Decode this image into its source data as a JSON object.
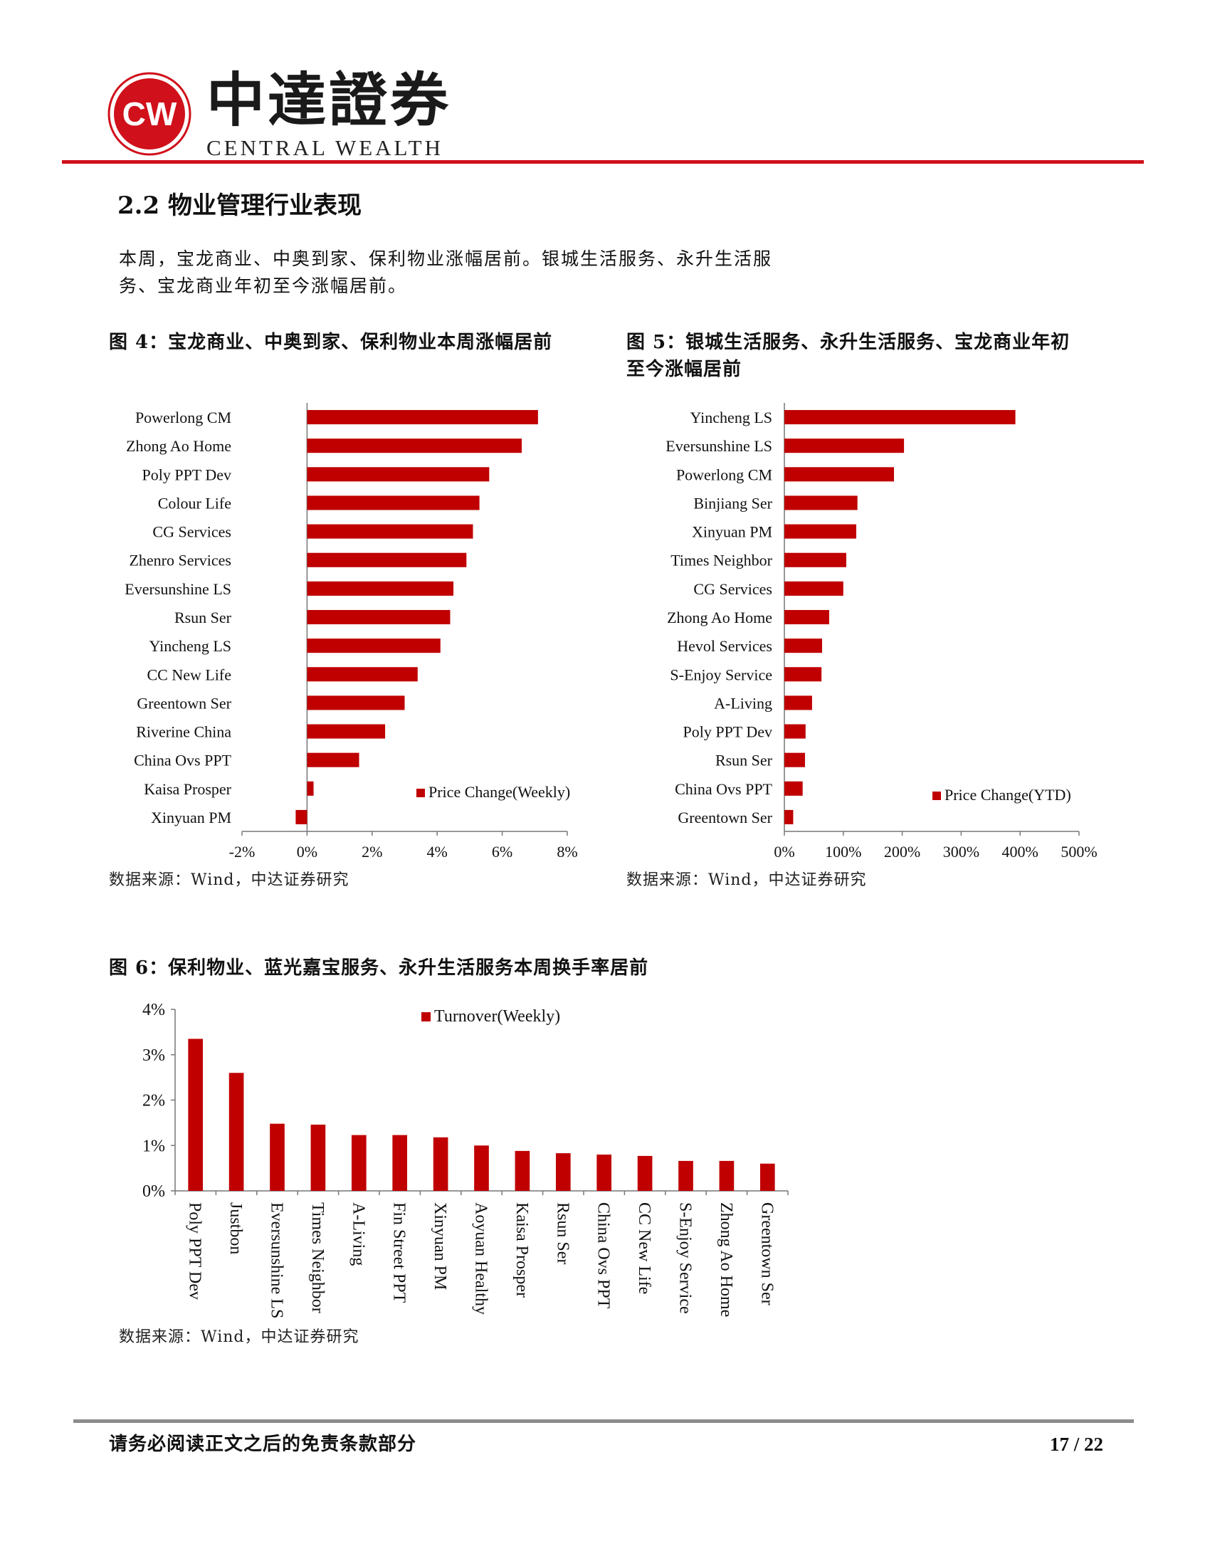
{
  "header": {
    "logo_text": "CW",
    "brand_cn": "中達證券",
    "brand_en": "CENTRAL WEALTH",
    "accent_color": "#d0101a"
  },
  "section": {
    "title": "2.2 物业管理行业表现",
    "intro_line1": "本周，宝龙商业、中奥到家、保利物业涨幅居前。银城生活服务、永升生活服",
    "intro_line2": "务、宝龙商业年初至今涨幅居前。"
  },
  "fig4": {
    "title": "图 4：宝龙商业、中奥到家、保利物业本周涨幅居前",
    "source": "数据来源：Wind，中达证券研究"
  },
  "fig5": {
    "title_line1": "图 5：银城生活服务、永升生活服务、宝龙商业年初",
    "title_line2": "至今涨幅居前",
    "source": "数据来源：Wind，中达证券研究"
  },
  "fig6": {
    "title": "图 6：保利物业、蓝光嘉宝服务、永升生活服务本周换手率居前",
    "source": "数据来源：Wind，中达证券研究"
  },
  "chart_data": [
    {
      "type": "bar",
      "orientation": "horizontal",
      "categories": [
        "Powerlong CM",
        "Zhong Ao Home",
        "Poly PPT Dev",
        "Colour Life",
        "CG Services",
        "Zhenro Services",
        "Eversunshine LS",
        "Rsun Ser",
        "Yincheng LS",
        "CC New Life",
        "Greentown Ser",
        "Riverine China",
        "China Ovs PPT",
        "Kaisa Prosper",
        "Xinyuan PM"
      ],
      "series": [
        {
          "name": "Price Change(Weekly)",
          "values": [
            7.1,
            6.6,
            5.6,
            5.3,
            5.1,
            4.9,
            4.5,
            4.4,
            4.1,
            3.4,
            3.0,
            2.4,
            1.6,
            0.2,
            -0.35
          ]
        }
      ],
      "xlim": [
        -2,
        8
      ],
      "xticks": [
        "-2%",
        "0%",
        "2%",
        "4%",
        "6%",
        "8%"
      ],
      "legend": "bottom-right",
      "color": "#c00000"
    },
    {
      "type": "bar",
      "orientation": "horizontal",
      "categories": [
        "Yincheng LS",
        "Eversunshine LS",
        "Powerlong CM",
        "Binjiang Ser",
        "Xinyuan PM",
        "Times Neighbor",
        "CG Services",
        "Zhong Ao Home",
        "Hevol Services",
        "S-Enjoy Service",
        "A-Living",
        "Poly PPT Dev",
        "Rsun Ser",
        "China Ovs PPT",
        "Greentown Ser"
      ],
      "series": [
        {
          "name": "Price Change(YTD)",
          "values": [
            392,
            203,
            186,
            124,
            122,
            105,
            100,
            76,
            64,
            63,
            47,
            36,
            35,
            31,
            15
          ]
        }
      ],
      "xlim": [
        0,
        500
      ],
      "xticks": [
        "0%",
        "100%",
        "200%",
        "300%",
        "400%",
        "500%"
      ],
      "legend": "bottom-right",
      "color": "#c00000"
    },
    {
      "type": "bar",
      "orientation": "vertical",
      "categories": [
        "Poly PPT Dev",
        "Justbon",
        "Eversunshine LS",
        "Times Neighbor",
        "A-Living",
        "Fin Street PPT",
        "Xinyuan PM",
        "Aoyuan Healthy",
        "Kaisa Prosper",
        "Rsun Ser",
        "China Ovs PPT",
        "CC New Life",
        "S-Enjoy Service",
        "Zhong Ao Home",
        "Greentown Ser"
      ],
      "series": [
        {
          "name": "Turnover(Weekly)",
          "values": [
            3.35,
            2.6,
            1.48,
            1.46,
            1.23,
            1.23,
            1.18,
            1.0,
            0.88,
            0.83,
            0.8,
            0.77,
            0.66,
            0.66,
            0.6
          ]
        }
      ],
      "ylim": [
        0,
        4
      ],
      "yticks": [
        "0%",
        "1%",
        "2%",
        "3%",
        "4%"
      ],
      "legend": "top-center",
      "color": "#c00000"
    }
  ],
  "footer": {
    "disclaimer": "请务必阅读正文之后的免责条款部分",
    "page": "17 / 22"
  }
}
